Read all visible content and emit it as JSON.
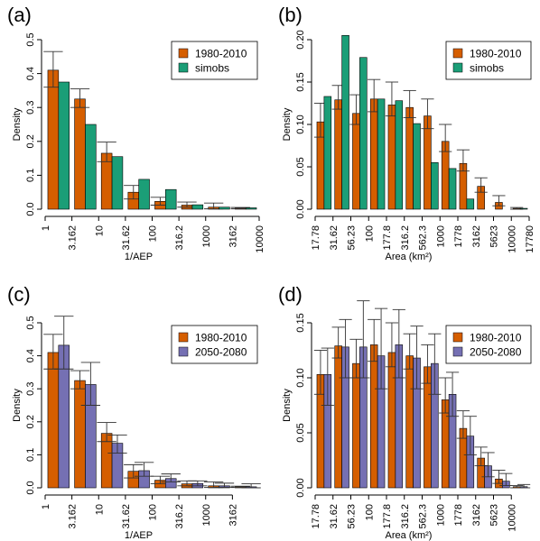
{
  "colors": {
    "orange": "#d55e00",
    "green": "#1b9e77",
    "purple": "#7570b3"
  },
  "chart_data": [
    {
      "type": "bar",
      "panel_label": "(a)",
      "xlabel": "1/AEP",
      "ylabel": "Density",
      "ylim": [
        0,
        0.5
      ],
      "yticks": [
        "0.0",
        "0.1",
        "0.2",
        "0.3",
        "0.4",
        "0.5"
      ],
      "xticks": [
        "1",
        "3.162",
        "10",
        "31.62",
        "100",
        "316.2",
        "1000",
        "3162",
        "10000"
      ],
      "legend_position": "top-right",
      "series": [
        {
          "name": "1980-2010",
          "color": "#d55e00",
          "values": [
            0.41,
            0.325,
            0.165,
            0.05,
            0.023,
            0.012,
            0.006,
            0.003
          ],
          "err_low": [
            0.36,
            0.3,
            0.14,
            0.03,
            0.012,
            0.006,
            0.001,
            0.001
          ],
          "err_high": [
            0.465,
            0.355,
            0.198,
            0.07,
            0.035,
            0.021,
            0.018,
            0.005
          ]
        },
        {
          "name": "simobs",
          "color": "#1b9e77",
          "values": [
            0.375,
            0.25,
            0.155,
            0.088,
            0.058,
            0.013,
            0.006,
            0.004
          ]
        }
      ]
    },
    {
      "type": "bar",
      "panel_label": "(b)",
      "xlabel": "Area (km²)",
      "ylabel": "Density",
      "ylim": [
        0,
        0.2
      ],
      "yticks": [
        "0.00",
        "0.05",
        "0.10",
        "0.15",
        "0.20"
      ],
      "xticks": [
        "17.78",
        "31.62",
        "56.23",
        "100",
        "177.8",
        "316.2",
        "562.3",
        "1000",
        "1778",
        "3162",
        "5623",
        "10000",
        "17780"
      ],
      "legend_position": "top-right",
      "series": [
        {
          "name": "1980-2010",
          "color": "#d55e00",
          "values": [
            0.103,
            0.129,
            0.113,
            0.13,
            0.123,
            0.12,
            0.11,
            0.08,
            0.054,
            0.027,
            0.008,
            0.001
          ],
          "err_low": [
            0.085,
            0.118,
            0.1,
            0.115,
            0.11,
            0.108,
            0.095,
            0.068,
            0.045,
            0.02,
            0.004,
            0.0
          ],
          "err_high": [
            0.125,
            0.146,
            0.135,
            0.153,
            0.15,
            0.14,
            0.13,
            0.1,
            0.07,
            0.037,
            0.016,
            0.002
          ]
        },
        {
          "name": "simobs",
          "color": "#1b9e77",
          "values": [
            0.133,
            0.205,
            0.179,
            0.13,
            0.128,
            0.101,
            0.055,
            0.048,
            0.012,
            0.0,
            0.0,
            0.001
          ]
        }
      ]
    },
    {
      "type": "bar",
      "panel_label": "(c)",
      "xlabel": "1/AEP",
      "ylabel": "Density",
      "ylim": [
        0,
        0.5
      ],
      "yticks": [
        "0.0",
        "0.1",
        "0.2",
        "0.3",
        "0.4",
        "0.5"
      ],
      "xticks": [
        "1",
        "3.162",
        "10",
        "31.62",
        "100",
        "316.2",
        "1000",
        "3162"
      ],
      "legend_position": "top-right",
      "series": [
        {
          "name": "1980-2010",
          "color": "#d55e00",
          "values": [
            0.41,
            0.325,
            0.165,
            0.05,
            0.023,
            0.012,
            0.006,
            0.003
          ],
          "err_low": [
            0.36,
            0.3,
            0.14,
            0.03,
            0.012,
            0.006,
            0.001,
            0.001
          ],
          "err_high": [
            0.465,
            0.355,
            0.198,
            0.07,
            0.035,
            0.021,
            0.018,
            0.005
          ]
        },
        {
          "name": "2050-2080",
          "color": "#7570b3",
          "values": [
            0.432,
            0.313,
            0.135,
            0.052,
            0.028,
            0.013,
            0.006,
            0.003
          ],
          "err_low": [
            0.36,
            0.25,
            0.105,
            0.035,
            0.018,
            0.006,
            0.002,
            0.0
          ],
          "err_high": [
            0.52,
            0.38,
            0.16,
            0.077,
            0.042,
            0.021,
            0.014,
            0.012
          ]
        }
      ]
    },
    {
      "type": "bar",
      "panel_label": "(d)",
      "xlabel": "Area (km²)",
      "ylabel": "Density",
      "ylim": [
        0,
        0.15
      ],
      "yticks": [
        "0.00",
        "0.05",
        "0.10",
        "0.15"
      ],
      "xticks": [
        "17.78",
        "31.62",
        "56.23",
        "100",
        "177.8",
        "316.2",
        "562.3",
        "1000",
        "1778",
        "3162",
        "5623",
        "10000"
      ],
      "legend_position": "top-right",
      "series": [
        {
          "name": "1980-2010",
          "color": "#d55e00",
          "values": [
            0.103,
            0.129,
            0.113,
            0.13,
            0.123,
            0.12,
            0.11,
            0.08,
            0.054,
            0.027,
            0.008,
            0.001
          ],
          "err_low": [
            0.085,
            0.118,
            0.1,
            0.115,
            0.11,
            0.108,
            0.095,
            0.068,
            0.045,
            0.02,
            0.004,
            0.0
          ],
          "err_high": [
            0.125,
            0.146,
            0.135,
            0.153,
            0.15,
            0.14,
            0.13,
            0.1,
            0.07,
            0.037,
            0.016,
            0.002
          ]
        },
        {
          "name": "2050-2080",
          "color": "#7570b3",
          "values": [
            0.103,
            0.128,
            0.128,
            0.12,
            0.13,
            0.118,
            0.113,
            0.085,
            0.047,
            0.02,
            0.006,
            0.001
          ],
          "err_low": [
            0.075,
            0.1,
            0.1,
            0.09,
            0.1,
            0.09,
            0.085,
            0.065,
            0.03,
            0.01,
            0.002,
            0.0
          ],
          "err_high": [
            0.127,
            0.153,
            0.17,
            0.163,
            0.162,
            0.147,
            0.14,
            0.105,
            0.065,
            0.032,
            0.013,
            0.003
          ]
        }
      ]
    }
  ]
}
